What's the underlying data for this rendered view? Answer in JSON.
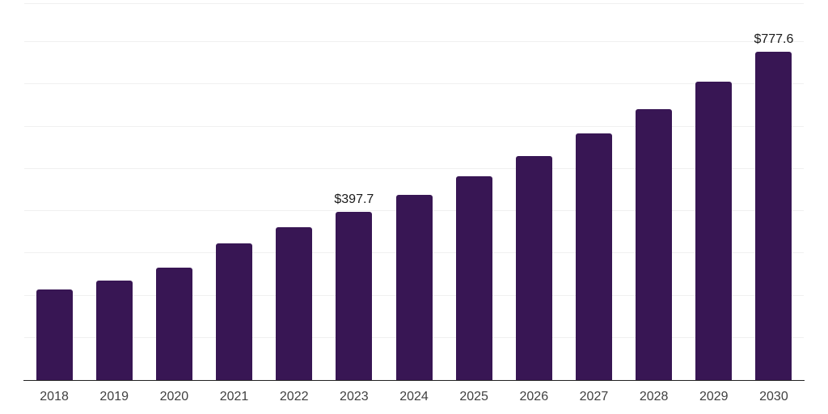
{
  "chart_data": {
    "type": "bar",
    "title": "",
    "xlabel": "",
    "ylabel": "",
    "categories": [
      "2018",
      "2019",
      "2020",
      "2021",
      "2022",
      "2023",
      "2024",
      "2025",
      "2026",
      "2027",
      "2028",
      "2029",
      "2030"
    ],
    "values": [
      215.2,
      234.7,
      267.0,
      324.2,
      362.2,
      397.7,
      437.7,
      481.6,
      530.0,
      583.3,
      641.9,
      706.4,
      777.6
    ],
    "data_labels": {
      "2023": "$397.7",
      "2030": "$777.6"
    },
    "ylim": [
      0,
      890
    ],
    "gridline_values": [
      100,
      200,
      300,
      400,
      500,
      600,
      700,
      800,
      890
    ],
    "grid": "horizontal",
    "legend": "none",
    "y_tick_labels_visible": false,
    "bar_color": "#381654",
    "axis_line_color": "#222222",
    "gridline_color": "#f0f0f0",
    "data_label_color": "#1a1a1a",
    "x_tick_label_color": "#404040"
  }
}
